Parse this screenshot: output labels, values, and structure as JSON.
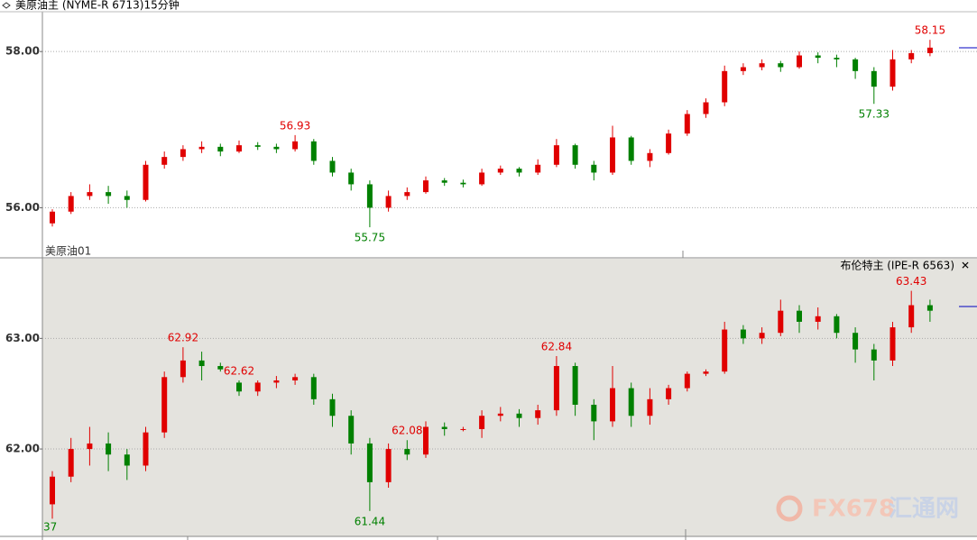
{
  "chart_data": [
    {
      "type": "candlestick",
      "title": "美原油主 (NYME-R 6713)15分钟",
      "subtitle": "美原油01",
      "ylim": [
        55.37,
        58.51
      ],
      "yticks": [
        {
          "value": 56,
          "label": "56.00"
        },
        {
          "value": 58,
          "label": "58.00"
        }
      ],
      "grid": true,
      "up_color": "#e00000",
      "down_color": "#008000",
      "extremes": [
        56.93,
        55.75,
        57.33,
        58.15
      ],
      "ohlc": [
        [
          55.8,
          55.98,
          55.76,
          55.95
        ],
        [
          55.95,
          56.2,
          55.92,
          56.15
        ],
        [
          56.15,
          56.3,
          56.1,
          56.2
        ],
        [
          56.2,
          56.28,
          56.05,
          56.15
        ],
        [
          56.15,
          56.22,
          56.0,
          56.1
        ],
        [
          56.1,
          56.6,
          56.08,
          56.55
        ],
        [
          56.55,
          56.72,
          56.5,
          56.65
        ],
        [
          56.65,
          56.8,
          56.6,
          56.75
        ],
        [
          56.75,
          56.85,
          56.7,
          56.78
        ],
        [
          56.78,
          56.82,
          56.66,
          56.72
        ],
        [
          56.72,
          56.86,
          56.7,
          56.8
        ],
        [
          56.8,
          56.84,
          56.74,
          56.78
        ],
        [
          56.78,
          56.82,
          56.7,
          56.75
        ],
        [
          56.75,
          56.93,
          56.72,
          56.85
        ],
        [
          56.85,
          56.88,
          56.55,
          56.6
        ],
        [
          56.6,
          56.65,
          56.4,
          56.45
        ],
        [
          56.45,
          56.5,
          56.22,
          56.3
        ],
        [
          56.3,
          56.35,
          55.75,
          56.0
        ],
        [
          56.0,
          56.22,
          55.95,
          56.15
        ],
        [
          56.15,
          56.26,
          56.1,
          56.2
        ],
        [
          56.2,
          56.4,
          56.18,
          56.35
        ],
        [
          56.35,
          56.38,
          56.28,
          56.32
        ],
        [
          56.32,
          56.36,
          56.26,
          56.3
        ],
        [
          56.3,
          56.5,
          56.28,
          56.45
        ],
        [
          56.45,
          56.54,
          56.42,
          56.5
        ],
        [
          56.5,
          56.52,
          56.4,
          56.45
        ],
        [
          56.45,
          56.62,
          56.42,
          56.55
        ],
        [
          56.55,
          56.88,
          56.52,
          56.8
        ],
        [
          56.8,
          56.82,
          56.5,
          56.55
        ],
        [
          56.55,
          56.6,
          56.35,
          56.45
        ],
        [
          56.45,
          57.05,
          56.42,
          56.9
        ],
        [
          56.9,
          56.92,
          56.55,
          56.6
        ],
        [
          56.6,
          56.75,
          56.52,
          56.7
        ],
        [
          56.7,
          57.0,
          56.68,
          56.95
        ],
        [
          56.95,
          57.25,
          56.92,
          57.2
        ],
        [
          57.2,
          57.4,
          57.15,
          57.35
        ],
        [
          57.35,
          57.82,
          57.3,
          57.75
        ],
        [
          57.75,
          57.85,
          57.7,
          57.8
        ],
        [
          57.8,
          57.9,
          57.76,
          57.85
        ],
        [
          57.85,
          57.88,
          57.74,
          57.8
        ],
        [
          57.8,
          58.0,
          57.78,
          57.95
        ],
        [
          57.95,
          57.99,
          57.85,
          57.92
        ],
        [
          57.92,
          57.96,
          57.8,
          57.9
        ],
        [
          57.9,
          57.92,
          57.65,
          57.75
        ],
        [
          57.75,
          57.8,
          57.33,
          57.55
        ],
        [
          57.55,
          58.02,
          57.5,
          57.9
        ],
        [
          57.9,
          58.02,
          57.85,
          57.98
        ],
        [
          57.98,
          58.15,
          57.94,
          58.05
        ]
      ]
    },
    {
      "type": "candlestick",
      "title": "布伦特主 (IPE-R 6563)",
      "edge_label": "37",
      "ylim": [
        61.21,
        63.72
      ],
      "yticks": [
        {
          "value": 62,
          "label": "62.00"
        },
        {
          "value": 63,
          "label": "63.00"
        }
      ],
      "grid": true,
      "up_color": "#e00000",
      "down_color": "#008000",
      "extremes": [
        62.92,
        61.44,
        62.84,
        62.08,
        62.62,
        63.43
      ],
      "ohlc": [
        [
          61.5,
          61.8,
          61.37,
          61.75
        ],
        [
          61.75,
          62.1,
          61.7,
          62.0
        ],
        [
          62.0,
          62.2,
          61.85,
          62.05
        ],
        [
          62.05,
          62.15,
          61.8,
          61.95
        ],
        [
          61.95,
          62.0,
          61.72,
          61.85
        ],
        [
          61.85,
          62.2,
          61.8,
          62.15
        ],
        [
          62.15,
          62.7,
          62.1,
          62.65
        ],
        [
          62.65,
          62.92,
          62.6,
          62.8
        ],
        [
          62.8,
          62.88,
          62.62,
          62.75
        ],
        [
          62.75,
          62.78,
          62.7,
          62.72
        ],
        [
          62.6,
          62.62,
          62.48,
          62.52
        ],
        [
          62.52,
          62.62,
          62.48,
          62.6
        ],
        [
          62.6,
          62.66,
          62.55,
          62.62
        ],
        [
          62.62,
          62.68,
          62.58,
          62.65
        ],
        [
          62.65,
          62.68,
          62.4,
          62.45
        ],
        [
          62.45,
          62.5,
          62.2,
          62.3
        ],
        [
          62.3,
          62.35,
          61.95,
          62.05
        ],
        [
          62.05,
          62.1,
          61.44,
          61.7
        ],
        [
          61.7,
          62.05,
          61.65,
          62.0
        ],
        [
          62.0,
          62.08,
          61.9,
          61.95
        ],
        [
          61.95,
          62.25,
          61.92,
          62.2
        ],
        [
          62.2,
          62.24,
          62.12,
          62.18
        ],
        [
          62.18,
          62.2,
          62.16,
          62.18
        ],
        [
          62.18,
          62.35,
          62.1,
          62.3
        ],
        [
          62.3,
          62.38,
          62.25,
          62.32
        ],
        [
          62.32,
          62.36,
          62.2,
          62.28
        ],
        [
          62.28,
          62.4,
          62.22,
          62.35
        ],
        [
          62.35,
          62.84,
          62.3,
          62.75
        ],
        [
          62.75,
          62.78,
          62.3,
          62.4
        ],
        [
          62.4,
          62.45,
          62.08,
          62.25
        ],
        [
          62.25,
          62.75,
          62.2,
          62.55
        ],
        [
          62.55,
          62.6,
          62.2,
          62.3
        ],
        [
          62.3,
          62.55,
          62.22,
          62.45
        ],
        [
          62.45,
          62.58,
          62.4,
          62.55
        ],
        [
          62.55,
          62.7,
          62.52,
          62.68
        ],
        [
          62.68,
          62.72,
          62.66,
          62.7
        ],
        [
          62.7,
          63.15,
          62.68,
          63.08
        ],
        [
          63.08,
          63.12,
          62.95,
          63.0
        ],
        [
          63.0,
          63.1,
          62.95,
          63.05
        ],
        [
          63.05,
          63.35,
          63.02,
          63.25
        ],
        [
          63.25,
          63.3,
          63.05,
          63.15
        ],
        [
          63.15,
          63.28,
          63.08,
          63.2
        ],
        [
          63.2,
          63.22,
          63.0,
          63.05
        ],
        [
          63.05,
          63.1,
          62.78,
          62.9
        ],
        [
          62.9,
          62.95,
          62.62,
          62.8
        ],
        [
          62.8,
          63.15,
          62.75,
          63.1
        ],
        [
          63.1,
          63.43,
          63.05,
          63.3
        ],
        [
          63.3,
          63.35,
          63.15,
          63.25
        ]
      ]
    }
  ],
  "watermark": {
    "brand": "FX678",
    "name": "汇通网"
  }
}
